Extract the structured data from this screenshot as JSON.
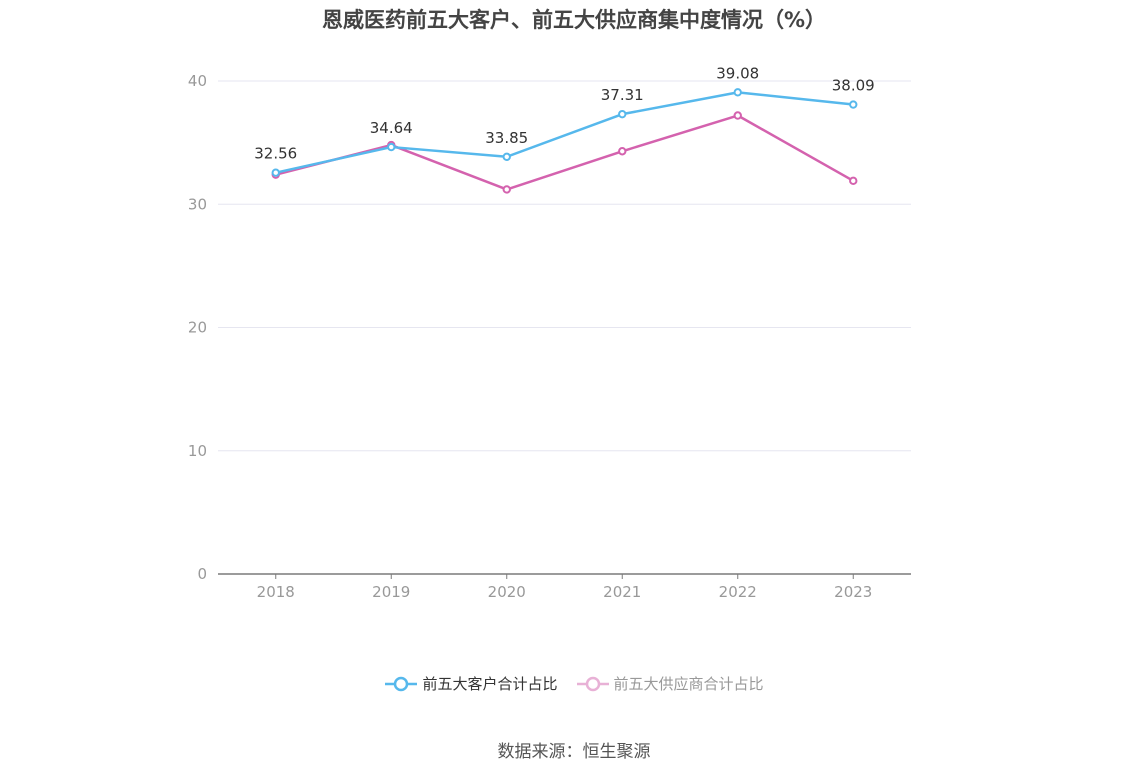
{
  "title": "恩威医药前五大客户、前五大供应商集中度情况（%）",
  "source": "数据来源：恒生聚源",
  "colors": {
    "customers": "#56b8ec",
    "suppliers": "#d462ae",
    "grid": "#e6e6f0",
    "axis": "#7a7a7a",
    "tick_text": "#999999",
    "label_text": "#333333",
    "legend_inactive": "#e8b1d6"
  },
  "chart_data": {
    "type": "line",
    "title": "恩威医药前五大客户、前五大供应商集中度情况（%）",
    "categories": [
      "2018",
      "2019",
      "2020",
      "2021",
      "2022",
      "2023"
    ],
    "y_ticks": [
      "0",
      "10",
      "20",
      "30",
      "40"
    ],
    "ylim": [
      0,
      40
    ],
    "grid": true,
    "legend_position": "bottom",
    "series": [
      {
        "name": "前五大客户合计占比",
        "values": [
          32.56,
          34.64,
          33.85,
          37.31,
          39.08,
          38.09
        ],
        "labels": [
          "32.56",
          "34.64",
          "33.85",
          "37.31",
          "39.08",
          "38.09"
        ]
      },
      {
        "name": "前五大供应商合计占比",
        "values": [
          32.4,
          34.8,
          31.2,
          34.3,
          37.2,
          31.9
        ]
      }
    ]
  }
}
